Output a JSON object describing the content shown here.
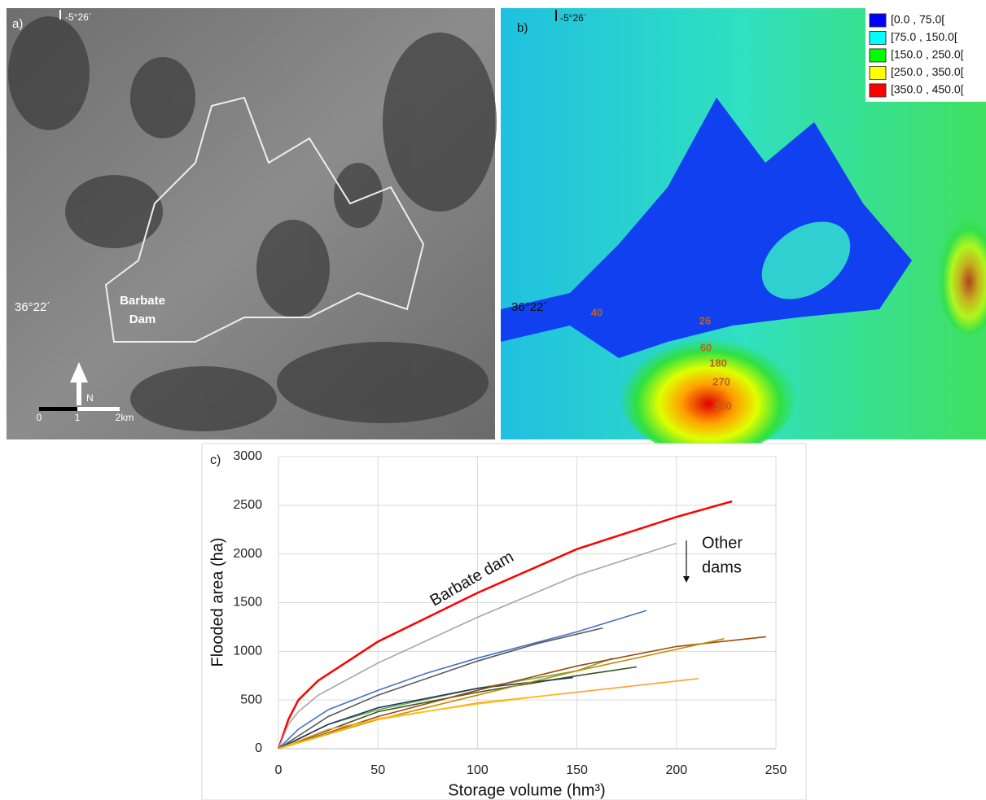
{
  "map_a": {
    "label": "a)",
    "longitude": "-5°26´",
    "latitude": "36°22´",
    "dam_label": [
      "Barbate",
      "Dam"
    ],
    "north": "N",
    "scale": [
      "0",
      "1",
      "2km"
    ]
  },
  "map_b": {
    "label": "b)",
    "longitude": "-5°26´",
    "latitude": "36°22´",
    "legend": [
      {
        "label": "[0.0 , 75.0[",
        "color": "#0000ff"
      },
      {
        "label": "[75.0 , 150.0[",
        "color": "#00ffff"
      },
      {
        "label": "[150.0 , 250.0[",
        "color": "#00ff00"
      },
      {
        "label": "[250.0 , 350.0[",
        "color": "#ffff00"
      },
      {
        "label": "[350.0 , 450.0[",
        "color": "#ff0000"
      }
    ],
    "contour_labels": [
      "40",
      "26",
      "60",
      "180",
      "270",
      "350"
    ]
  },
  "chart_data": {
    "type": "line",
    "panel_label": "c)",
    "x_label": "Storage volume (hm³)",
    "y_label": "Flooded area (ha)",
    "xlim": [
      0,
      250
    ],
    "xticks": [
      0,
      50,
      100,
      150,
      200,
      250
    ],
    "ylim": [
      0,
      3000
    ],
    "yticks": [
      0,
      500,
      1000,
      1500,
      2000,
      2500,
      3000
    ],
    "grid": true,
    "annotations": [
      {
        "text": "Barbate dam"
      },
      {
        "text": [
          "Other",
          "dams"
        ]
      }
    ],
    "series": [
      {
        "color": "#ff0000",
        "x": [
          0,
          5,
          10,
          20,
          50,
          100,
          150,
          200,
          228
        ],
        "values": [
          0,
          300,
          500,
          700,
          1100,
          1600,
          2050,
          2380,
          2540
        ]
      },
      {
        "color": "#a6a6a6",
        "x": [
          0,
          5,
          10,
          20,
          50,
          100,
          150,
          200
        ],
        "values": [
          0,
          250,
          380,
          550,
          880,
          1350,
          1780,
          2110
        ]
      },
      {
        "color": "#4472c4",
        "x": [
          0,
          10,
          25,
          50,
          75,
          100,
          150,
          185
        ],
        "values": [
          0,
          200,
          400,
          600,
          780,
          930,
          1200,
          1420
        ]
      },
      {
        "color": "#595959",
        "x": [
          0,
          25,
          50,
          100,
          130,
          163
        ],
        "values": [
          0,
          330,
          550,
          900,
          1080,
          1240
        ]
      },
      {
        "color": "#70ad47",
        "x": [
          0,
          25,
          50,
          100,
          150,
          168
        ],
        "values": [
          0,
          250,
          400,
          620,
          800,
          930
        ]
      },
      {
        "color": "#375623",
        "x": [
          0,
          50,
          100,
          150,
          180
        ],
        "values": [
          0,
          380,
          580,
          750,
          840
        ]
      },
      {
        "color": "#203864",
        "x": [
          0,
          25,
          50,
          100,
          148
        ],
        "values": [
          0,
          250,
          420,
          620,
          730
        ]
      },
      {
        "color": "#9e480e",
        "x": [
          0,
          50,
          100,
          150,
          200,
          245
        ],
        "values": [
          0,
          330,
          600,
          850,
          1050,
          1150
        ]
      },
      {
        "color": "#bf8f00",
        "x": [
          0,
          50,
          100,
          150,
          200,
          224
        ],
        "values": [
          0,
          300,
          550,
          800,
          1020,
          1130
        ]
      },
      {
        "color": "#ffa030",
        "x": [
          0,
          25,
          50,
          100,
          150,
          211
        ],
        "values": [
          0,
          200,
          300,
          470,
          580,
          720
        ]
      },
      {
        "color": "#ffc000",
        "x": [
          0,
          50,
          100,
          140
        ],
        "values": [
          0,
          310,
          460,
          560
        ]
      }
    ]
  }
}
